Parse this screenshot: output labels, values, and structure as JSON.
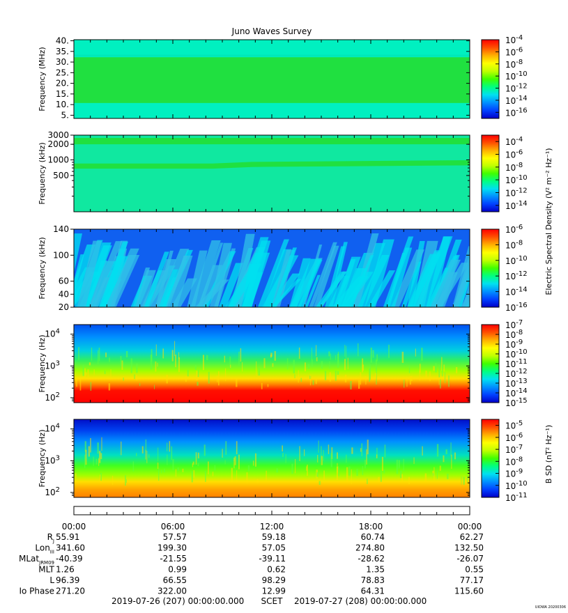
{
  "title": "Juno Waves Survey",
  "watermark": "UIOWA 20200306",
  "colorbar_colors": [
    "#0000c8",
    "#0040ff",
    "#0090ff",
    "#00e0f0",
    "#00ff80",
    "#40ff00",
    "#c0ff00",
    "#ffff00",
    "#ffb000",
    "#ff5000",
    "#ff0000"
  ],
  "colorbar_labels": {
    "electric": "Electric Spectral Density (V² m⁻² Hz⁻¹)",
    "magnetic": "B SD (nT² Hz⁻¹)"
  },
  "chart_data": [
    {
      "type": "heatmap",
      "name": "panel-mhz",
      "ylabel": "Frequency (MHz)",
      "yscale": "linear",
      "ylim": [
        3.5,
        40.5
      ],
      "yticks": [
        "40.",
        "35.",
        "30.",
        "25.",
        "20.",
        "15.",
        "10.",
        "5."
      ],
      "ytick_values": [
        40,
        35,
        30,
        25,
        20,
        15,
        10,
        5
      ],
      "colorbar": {
        "scale": "log",
        "range": [
          -17,
          -4
        ],
        "ticks": [
          {
            "base": "10",
            "exp": "-4"
          },
          {
            "base": "10",
            "exp": "-6"
          },
          {
            "base": "10",
            "exp": "-8"
          },
          {
            "base": "10",
            "exp": "-10"
          },
          {
            "base": "10",
            "exp": "-12"
          },
          {
            "base": "10",
            "exp": "-14"
          },
          {
            "base": "10",
            "exp": "-16"
          }
        ],
        "tick_values": [
          -4,
          -6,
          -8,
          -10,
          -12,
          -14,
          -16
        ]
      },
      "background_color": "#00f0c0",
      "features": [
        {
          "kind": "band",
          "y": 21.5,
          "width": 1.5,
          "color": "#20e040"
        },
        {
          "kind": "band",
          "y": 33.0,
          "width": 1.0,
          "color": "#00e8b8"
        }
      ]
    },
    {
      "type": "heatmap",
      "name": "panel-khz-high",
      "ylabel": "Frequency (kHz)",
      "yscale": "log",
      "ylim": [
        100,
        3000
      ],
      "yticks": [
        "3000",
        "2000",
        "1000",
        "500"
      ],
      "ytick_values": [
        3000,
        2000,
        1000,
        500
      ],
      "colorbar": {
        "scale": "log",
        "range": [
          -15,
          -3
        ],
        "ticks": [
          {
            "base": "10",
            "exp": "-4"
          },
          {
            "base": "10",
            "exp": "-6"
          },
          {
            "base": "10",
            "exp": "-8"
          },
          {
            "base": "10",
            "exp": "-10"
          },
          {
            "base": "10",
            "exp": "-12"
          },
          {
            "base": "10",
            "exp": "-14"
          }
        ],
        "tick_values": [
          -4,
          -6,
          -8,
          -10,
          -12,
          -14
        ]
      },
      "background_color": "#10e8a0",
      "features": [
        {
          "kind": "band",
          "y": 2300,
          "width": 1.15,
          "color": "#20e040"
        },
        {
          "kind": "band",
          "y": 760,
          "y_end": 880,
          "width": 1.12,
          "color": "#20e040"
        }
      ]
    },
    {
      "type": "heatmap",
      "name": "panel-khz-low",
      "ylabel": "Frequency (kHz)",
      "yscale": "linear",
      "ylim": [
        20,
        140
      ],
      "yticks": [
        "140",
        "100",
        "60",
        "40",
        "20"
      ],
      "ytick_values": [
        140,
        100,
        60,
        40,
        20
      ],
      "colorbar": {
        "scale": "log",
        "range": [
          -16,
          -6
        ],
        "ticks": [
          {
            "base": "10",
            "exp": "-6"
          },
          {
            "base": "10",
            "exp": "-8"
          },
          {
            "base": "10",
            "exp": "-10"
          },
          {
            "base": "10",
            "exp": "-12"
          },
          {
            "base": "10",
            "exp": "-14"
          },
          {
            "base": "10",
            "exp": "-16"
          }
        ],
        "tick_values": [
          -6,
          -8,
          -10,
          -12,
          -14,
          -16
        ]
      },
      "background_color": "#1060f0",
      "features": [
        {
          "kind": "streaks",
          "color": "#00e0f0",
          "alt_color": "#30c0e8"
        }
      ]
    },
    {
      "type": "heatmap",
      "name": "panel-hz-electric",
      "ylabel": "Frequency (Hz)",
      "yscale": "log",
      "ylim": [
        70,
        20000
      ],
      "yticks": [
        {
          "base": "10",
          "exp": "4"
        },
        {
          "base": "10",
          "exp": "3"
        },
        {
          "base": "10",
          "exp": "2"
        }
      ],
      "ytick_values": [
        10000,
        1000,
        100
      ],
      "colorbar": {
        "scale": "log",
        "range": [
          -15,
          -7
        ],
        "ticks": [
          {
            "base": "10",
            "exp": "-7"
          },
          {
            "base": "10",
            "exp": "-8"
          },
          {
            "base": "10",
            "exp": "-9"
          },
          {
            "base": "10",
            "exp": "-10"
          },
          {
            "base": "10",
            "exp": "-11"
          },
          {
            "base": "10",
            "exp": "-12"
          },
          {
            "base": "10",
            "exp": "-13"
          },
          {
            "base": "10",
            "exp": "-14"
          },
          {
            "base": "10",
            "exp": "-15"
          }
        ],
        "tick_values": [
          -7,
          -8,
          -9,
          -10,
          -11,
          -12,
          -13,
          -14,
          -15
        ]
      },
      "features": [
        {
          "kind": "layers",
          "stops": [
            {
              "y": 20000,
              "color": "#0050f0"
            },
            {
              "y": 8000,
              "color": "#0090ff"
            },
            {
              "y": 3000,
              "color": "#00d0e0"
            },
            {
              "y": 1500,
              "color": "#30f060"
            },
            {
              "y": 700,
              "color": "#a0ff00"
            },
            {
              "y": 400,
              "color": "#ffe000"
            },
            {
              "y": 260,
              "color": "#ff8000"
            },
            {
              "y": 170,
              "color": "#ff1000"
            },
            {
              "y": 70,
              "color": "#ff0000"
            }
          ]
        }
      ]
    },
    {
      "type": "heatmap",
      "name": "panel-hz-magnetic",
      "ylabel": "Frequency (Hz)",
      "yscale": "log",
      "ylim": [
        70,
        20000
      ],
      "yticks": [
        {
          "base": "10",
          "exp": "4"
        },
        {
          "base": "10",
          "exp": "3"
        },
        {
          "base": "10",
          "exp": "2"
        }
      ],
      "ytick_values": [
        10000,
        1000,
        100
      ],
      "colorbar": {
        "scale": "log",
        "range": [
          -11,
          -4.5
        ],
        "ticks": [
          {
            "base": "10",
            "exp": "-5"
          },
          {
            "base": "10",
            "exp": "-6"
          },
          {
            "base": "10",
            "exp": "-7"
          },
          {
            "base": "10",
            "exp": "-8"
          },
          {
            "base": "10",
            "exp": "-9"
          },
          {
            "base": "10",
            "exp": "-10"
          },
          {
            "base": "10",
            "exp": "-11"
          }
        ],
        "tick_values": [
          -5,
          -6,
          -7,
          -8,
          -9,
          -10,
          -11
        ]
      },
      "features": [
        {
          "kind": "layers",
          "stops": [
            {
              "y": 20000,
              "color": "#0010c8"
            },
            {
              "y": 9000,
              "color": "#0040f0"
            },
            {
              "y": 4000,
              "color": "#0090ff"
            },
            {
              "y": 1500,
              "color": "#00e0c0"
            },
            {
              "y": 700,
              "color": "#40ff20"
            },
            {
              "y": 350,
              "color": "#a0ff00"
            },
            {
              "y": 220,
              "color": "#ffe000"
            },
            {
              "y": 120,
              "color": "#ffa000"
            },
            {
              "y": 70,
              "color": "#ff8000"
            }
          ]
        }
      ]
    }
  ],
  "time_axis": {
    "labels": [
      "00:00",
      "06:00",
      "12:00",
      "18:00",
      "00:00"
    ],
    "rows": [
      {
        "label": "R",
        "sub": "J",
        "values": [
          "55.91",
          "57.57",
          "59.18",
          "60.74",
          "62.27"
        ]
      },
      {
        "label": "Lon",
        "sub": "III",
        "values": [
          "341.60",
          "199.30",
          "57.05",
          "274.80",
          "132.50"
        ]
      },
      {
        "label": "MLat",
        "sub": "JRM09",
        "values": [
          "-40.39",
          "-21.55",
          "-39.11",
          "-28.62",
          "-26.07"
        ]
      },
      {
        "label": "MLT",
        "sub": "",
        "values": [
          "1.26",
          "0.99",
          "0.62",
          "1.35",
          "0.55"
        ]
      },
      {
        "label": "L",
        "sub": "",
        "values": [
          "96.39",
          "66.55",
          "98.29",
          "78.83",
          "77.17"
        ]
      },
      {
        "label": "Io Phase",
        "sub": "",
        "values": [
          "271.20",
          "322.00",
          "12.99",
          "64.31",
          "115.60"
        ]
      }
    ],
    "range_start": "2019-07-26 (207) 00:00:00.000",
    "range_label": "SCET",
    "range_end": "2019-07-27 (208) 00:00:00.000"
  }
}
